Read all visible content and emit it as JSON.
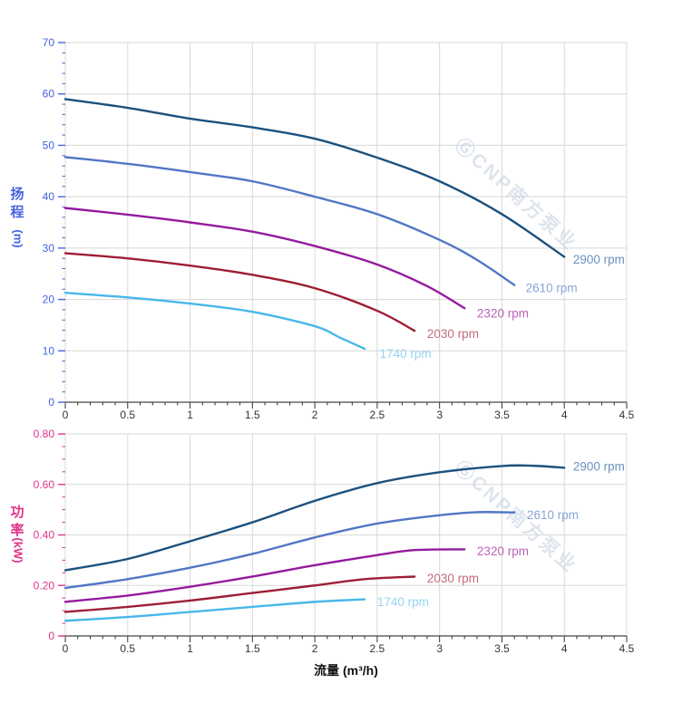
{
  "colors": {
    "background": "#ffffff",
    "grid": "#d8d8d8",
    "border": "#cccccc",
    "x_axis_line": "#444444",
    "x_tick": "#333333",
    "head_axis": "#4663e0",
    "power_axis": "#e0338c",
    "watermark": "#c8d3e3"
  },
  "watermark": {
    "text": "ⒼCNP南方泵业",
    "angle_deg": 42
  },
  "chart_data": [
    {
      "id": "head-vs-flow",
      "type": "line",
      "title": "",
      "ylabel": "扬程",
      "ylabel_unit": "(m)",
      "xlabel": "",
      "xlim": [
        0,
        4.5
      ],
      "ylim": [
        0,
        70
      ],
      "xticks": [
        "0",
        "0.5",
        "1",
        "1.5",
        "2",
        "2.5",
        "3",
        "3.5",
        "4",
        "4.5"
      ],
      "yticks": [
        "0",
        "10",
        "20",
        "30",
        "40",
        "50",
        "60",
        "70"
      ],
      "x_minor_step": 0.1,
      "y_minor_step": 2,
      "grid": true,
      "axis_color": "#4663e0",
      "watermark_at": [
        500,
        162
      ],
      "series": [
        {
          "name": "2900 rpm",
          "color": "#1b517d",
          "label_color": "#6a92c2",
          "points": [
            [
              0,
              59
            ],
            [
              0.5,
              57.3
            ],
            [
              1,
              55.2
            ],
            [
              1.5,
              53.5
            ],
            [
              2,
              51.3
            ],
            [
              2.5,
              47.6
            ],
            [
              3,
              43
            ],
            [
              3.5,
              36.6
            ],
            [
              4,
              28.3
            ]
          ],
          "label_at": [
            4.07,
            27.9
          ]
        },
        {
          "name": "2610 rpm",
          "color": "#5076c6",
          "label_color": "#8aa4d8",
          "points": [
            [
              0,
              47.7
            ],
            [
              0.5,
              46.4
            ],
            [
              1,
              44.8
            ],
            [
              1.5,
              43
            ],
            [
              2,
              40
            ],
            [
              2.5,
              36.6
            ],
            [
              3,
              31.6
            ],
            [
              3.3,
              27.7
            ],
            [
              3.6,
              22.8
            ]
          ],
          "label_at": [
            3.69,
            22.3
          ]
        },
        {
          "name": "2320 rpm",
          "color": "#941b9d",
          "label_color": "#b763b8",
          "points": [
            [
              0,
              37.8
            ],
            [
              0.5,
              36.5
            ],
            [
              1,
              35
            ],
            [
              1.5,
              33.2
            ],
            [
              2,
              30.4
            ],
            [
              2.5,
              26.8
            ],
            [
              2.9,
              22.6
            ],
            [
              3.2,
              18.3
            ]
          ],
          "label_at": [
            3.3,
            17.4
          ]
        },
        {
          "name": "2030 rpm",
          "color": "#9e1e33",
          "label_color": "#c26b7e",
          "points": [
            [
              0,
              29
            ],
            [
              0.5,
              28
            ],
            [
              1,
              26.6
            ],
            [
              1.5,
              24.8
            ],
            [
              2,
              22.2
            ],
            [
              2.5,
              17.8
            ],
            [
              2.8,
              13.9
            ]
          ],
          "label_at": [
            2.9,
            13.4
          ]
        },
        {
          "name": "1740 rpm",
          "color": "#48b7e8",
          "label_color": "#95d4f1",
          "points": [
            [
              0,
              21.3
            ],
            [
              0.5,
              20.4
            ],
            [
              1,
              19.2
            ],
            [
              1.5,
              17.6
            ],
            [
              2,
              14.8
            ],
            [
              2.2,
              12.6
            ],
            [
              2.4,
              10.4
            ]
          ],
          "label_at": [
            2.52,
            9.5
          ]
        }
      ]
    },
    {
      "id": "power-vs-flow",
      "type": "line",
      "title": "",
      "ylabel": "功率",
      "ylabel_unit": "(kW)",
      "xlabel": "流量 (m³/h)",
      "xlim": [
        0,
        4.5
      ],
      "ylim": [
        0,
        0.8
      ],
      "xticks": [
        "0",
        "0.5",
        "1",
        "1.5",
        "2",
        "2.5",
        "3",
        "3.5",
        "4",
        "4.5"
      ],
      "yticks": [
        "0",
        "0.20",
        "0.40",
        "0.60",
        "0.80"
      ],
      "x_minor_step": 0.1,
      "y_minor_step": 0.05,
      "grid": true,
      "axis_color": "#e0338c",
      "watermark_at": [
        500,
        58
      ],
      "series": [
        {
          "name": "2900 rpm",
          "color": "#1b517d",
          "label_color": "#6a92c2",
          "points": [
            [
              0,
              0.26
            ],
            [
              0.5,
              0.305
            ],
            [
              1,
              0.375
            ],
            [
              1.5,
              0.45
            ],
            [
              2,
              0.535
            ],
            [
              2.5,
              0.605
            ],
            [
              3,
              0.648
            ],
            [
              3.5,
              0.673
            ],
            [
              3.75,
              0.674
            ],
            [
              4,
              0.666
            ]
          ],
          "label_at": [
            4.07,
            0.672
          ]
        },
        {
          "name": "2610 rpm",
          "color": "#5076c6",
          "label_color": "#8aa4d8",
          "points": [
            [
              0,
              0.19
            ],
            [
              0.5,
              0.225
            ],
            [
              1,
              0.27
            ],
            [
              1.5,
              0.325
            ],
            [
              2,
              0.39
            ],
            [
              2.5,
              0.445
            ],
            [
              3,
              0.478
            ],
            [
              3.3,
              0.49
            ],
            [
              3.6,
              0.489
            ]
          ],
          "label_at": [
            3.7,
            0.481
          ]
        },
        {
          "name": "2320 rpm",
          "color": "#941b9d",
          "label_color": "#b763b8",
          "points": [
            [
              0,
              0.135
            ],
            [
              0.5,
              0.16
            ],
            [
              1,
              0.195
            ],
            [
              1.5,
              0.235
            ],
            [
              2,
              0.28
            ],
            [
              2.5,
              0.32
            ],
            [
              2.8,
              0.34
            ],
            [
              3.2,
              0.343
            ]
          ],
          "label_at": [
            3.3,
            0.337
          ]
        },
        {
          "name": "2030 rpm",
          "color": "#9e1e33",
          "label_color": "#c26b7e",
          "points": [
            [
              0,
              0.095
            ],
            [
              0.5,
              0.115
            ],
            [
              1,
              0.14
            ],
            [
              1.5,
              0.17
            ],
            [
              2,
              0.2
            ],
            [
              2.4,
              0.225
            ],
            [
              2.8,
              0.235
            ]
          ],
          "label_at": [
            2.9,
            0.229
          ]
        },
        {
          "name": "1740 rpm",
          "color": "#48b7e8",
          "label_color": "#95d4f1",
          "points": [
            [
              0,
              0.06
            ],
            [
              0.5,
              0.075
            ],
            [
              1,
              0.095
            ],
            [
              1.5,
              0.115
            ],
            [
              2,
              0.135
            ],
            [
              2.4,
              0.145
            ]
          ],
          "label_at": [
            2.5,
            0.136
          ]
        }
      ]
    }
  ]
}
